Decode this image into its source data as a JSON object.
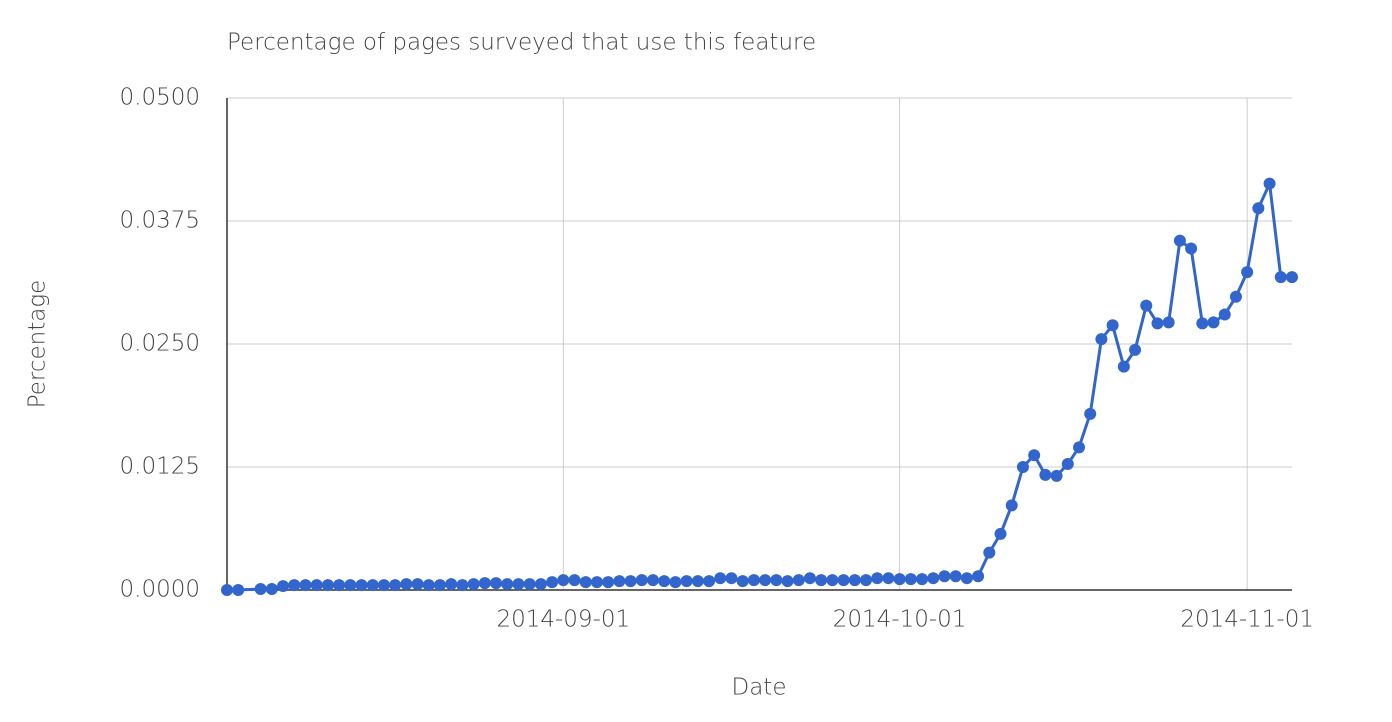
{
  "chart_data": {
    "type": "line",
    "title": "Percentage of pages surveyed that use this feature",
    "x_label": "Date",
    "y_label": "Percentage",
    "x": [
      "2014-08-02",
      "2014-08-03",
      "2014-08-05",
      "2014-08-06",
      "2014-08-07",
      "2014-08-08",
      "2014-08-09",
      "2014-08-10",
      "2014-08-11",
      "2014-08-12",
      "2014-08-13",
      "2014-08-14",
      "2014-08-15",
      "2014-08-16",
      "2014-08-17",
      "2014-08-18",
      "2014-08-19",
      "2014-08-20",
      "2014-08-21",
      "2014-08-22",
      "2014-08-23",
      "2014-08-24",
      "2014-08-25",
      "2014-08-26",
      "2014-08-27",
      "2014-08-28",
      "2014-08-29",
      "2014-08-30",
      "2014-08-31",
      "2014-09-01",
      "2014-09-02",
      "2014-09-03",
      "2014-09-04",
      "2014-09-05",
      "2014-09-06",
      "2014-09-07",
      "2014-09-08",
      "2014-09-09",
      "2014-09-10",
      "2014-09-11",
      "2014-09-12",
      "2014-09-13",
      "2014-09-14",
      "2014-09-15",
      "2014-09-16",
      "2014-09-17",
      "2014-09-18",
      "2014-09-19",
      "2014-09-20",
      "2014-09-21",
      "2014-09-22",
      "2014-09-23",
      "2014-09-24",
      "2014-09-25",
      "2014-09-26",
      "2014-09-27",
      "2014-09-28",
      "2014-09-29",
      "2014-09-30",
      "2014-10-01",
      "2014-10-02",
      "2014-10-03",
      "2014-10-04",
      "2014-10-05",
      "2014-10-06",
      "2014-10-07",
      "2014-10-08",
      "2014-10-09",
      "2014-10-10",
      "2014-10-11",
      "2014-10-12",
      "2014-10-13",
      "2014-10-14",
      "2014-10-15",
      "2014-10-16",
      "2014-10-17",
      "2014-10-18",
      "2014-10-19",
      "2014-10-20",
      "2014-10-21",
      "2014-10-22",
      "2014-10-23",
      "2014-10-24",
      "2014-10-25",
      "2014-10-26",
      "2014-10-27",
      "2014-10-28",
      "2014-10-29",
      "2014-10-30",
      "2014-10-31",
      "2014-11-01",
      "2014-11-02",
      "2014-11-03",
      "2014-11-04",
      "2014-11-05"
    ],
    "series": [
      {
        "name": "Percentage",
        "color": "#3366cc",
        "values": [
          0.0,
          0.0,
          0.0001,
          0.0001,
          0.0004,
          0.0005,
          0.0005,
          0.0005,
          0.0005,
          0.0005,
          0.0005,
          0.0005,
          0.0005,
          0.0005,
          0.0005,
          0.0006,
          0.0006,
          0.0005,
          0.0005,
          0.0006,
          0.0005,
          0.0006,
          0.0007,
          0.0007,
          0.0006,
          0.0006,
          0.0006,
          0.0006,
          0.0008,
          0.001,
          0.001,
          0.0008,
          0.0008,
          0.0008,
          0.0009,
          0.0009,
          0.001,
          0.001,
          0.0009,
          0.0008,
          0.0009,
          0.0009,
          0.0009,
          0.0012,
          0.0012,
          0.0009,
          0.001,
          0.001,
          0.001,
          0.0009,
          0.001,
          0.0012,
          0.001,
          0.001,
          0.001,
          0.001,
          0.001,
          0.0012,
          0.0012,
          0.0011,
          0.0011,
          0.0011,
          0.0012,
          0.0014,
          0.0014,
          0.0012,
          0.0014,
          0.0038,
          0.0057,
          0.0086,
          0.0125,
          0.0137,
          0.0117,
          0.0116,
          0.0128,
          0.0145,
          0.0179,
          0.0255,
          0.0269,
          0.0227,
          0.0244,
          0.0289,
          0.0271,
          0.0272,
          0.0355,
          0.0347,
          0.0271,
          0.0272,
          0.028,
          0.0298,
          0.0323,
          0.0388,
          0.0413,
          0.0318,
          0.0318
        ]
      }
    ],
    "xlim": [
      "2014-08-02",
      "2014-11-05"
    ],
    "xticks": [
      "2014-09-01",
      "2014-10-01",
      "2014-11-01"
    ],
    "ylim": [
      0,
      0.05
    ],
    "yticks": [
      {
        "value": 0,
        "label": "0.0000"
      },
      0.0125,
      {
        "value": 0.025,
        "label": "0.0250"
      },
      0.0375,
      {
        "value": 0.05,
        "label": "0.0500"
      }
    ],
    "grid": true
  }
}
